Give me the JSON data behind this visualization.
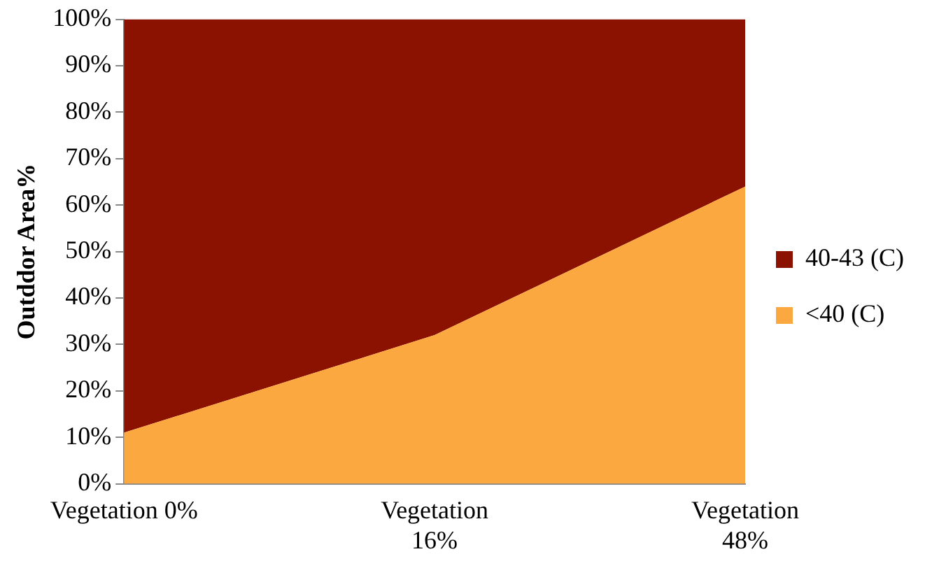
{
  "chart_data": {
    "type": "area",
    "stacked": true,
    "ylabel": "Outddor Area%",
    "categories": [
      "Vegetation 0%",
      "Vegetation 16%",
      "Vegetation 48%"
    ],
    "series": [
      {
        "name": "<40 (C)",
        "color": "#fca841",
        "values": [
          11,
          32,
          64
        ]
      },
      {
        "name": "40-43 (C)",
        "color": "#8b1100",
        "values": [
          89,
          68,
          36
        ]
      }
    ],
    "ylim": [
      0,
      100
    ],
    "yticks": [
      {
        "value": 0,
        "label": "0%"
      },
      {
        "value": 10,
        "label": "10%"
      },
      {
        "value": 20,
        "label": "20%"
      },
      {
        "value": 30,
        "label": "30%"
      },
      {
        "value": 40,
        "label": "40%"
      },
      {
        "value": 50,
        "label": "50%"
      },
      {
        "value": 60,
        "label": "60%"
      },
      {
        "value": 70,
        "label": "70%"
      },
      {
        "value": 80,
        "label": "80%"
      },
      {
        "value": 90,
        "label": "90%"
      },
      {
        "value": 100,
        "label": "100%"
      }
    ],
    "grid": false,
    "legend": "right"
  }
}
